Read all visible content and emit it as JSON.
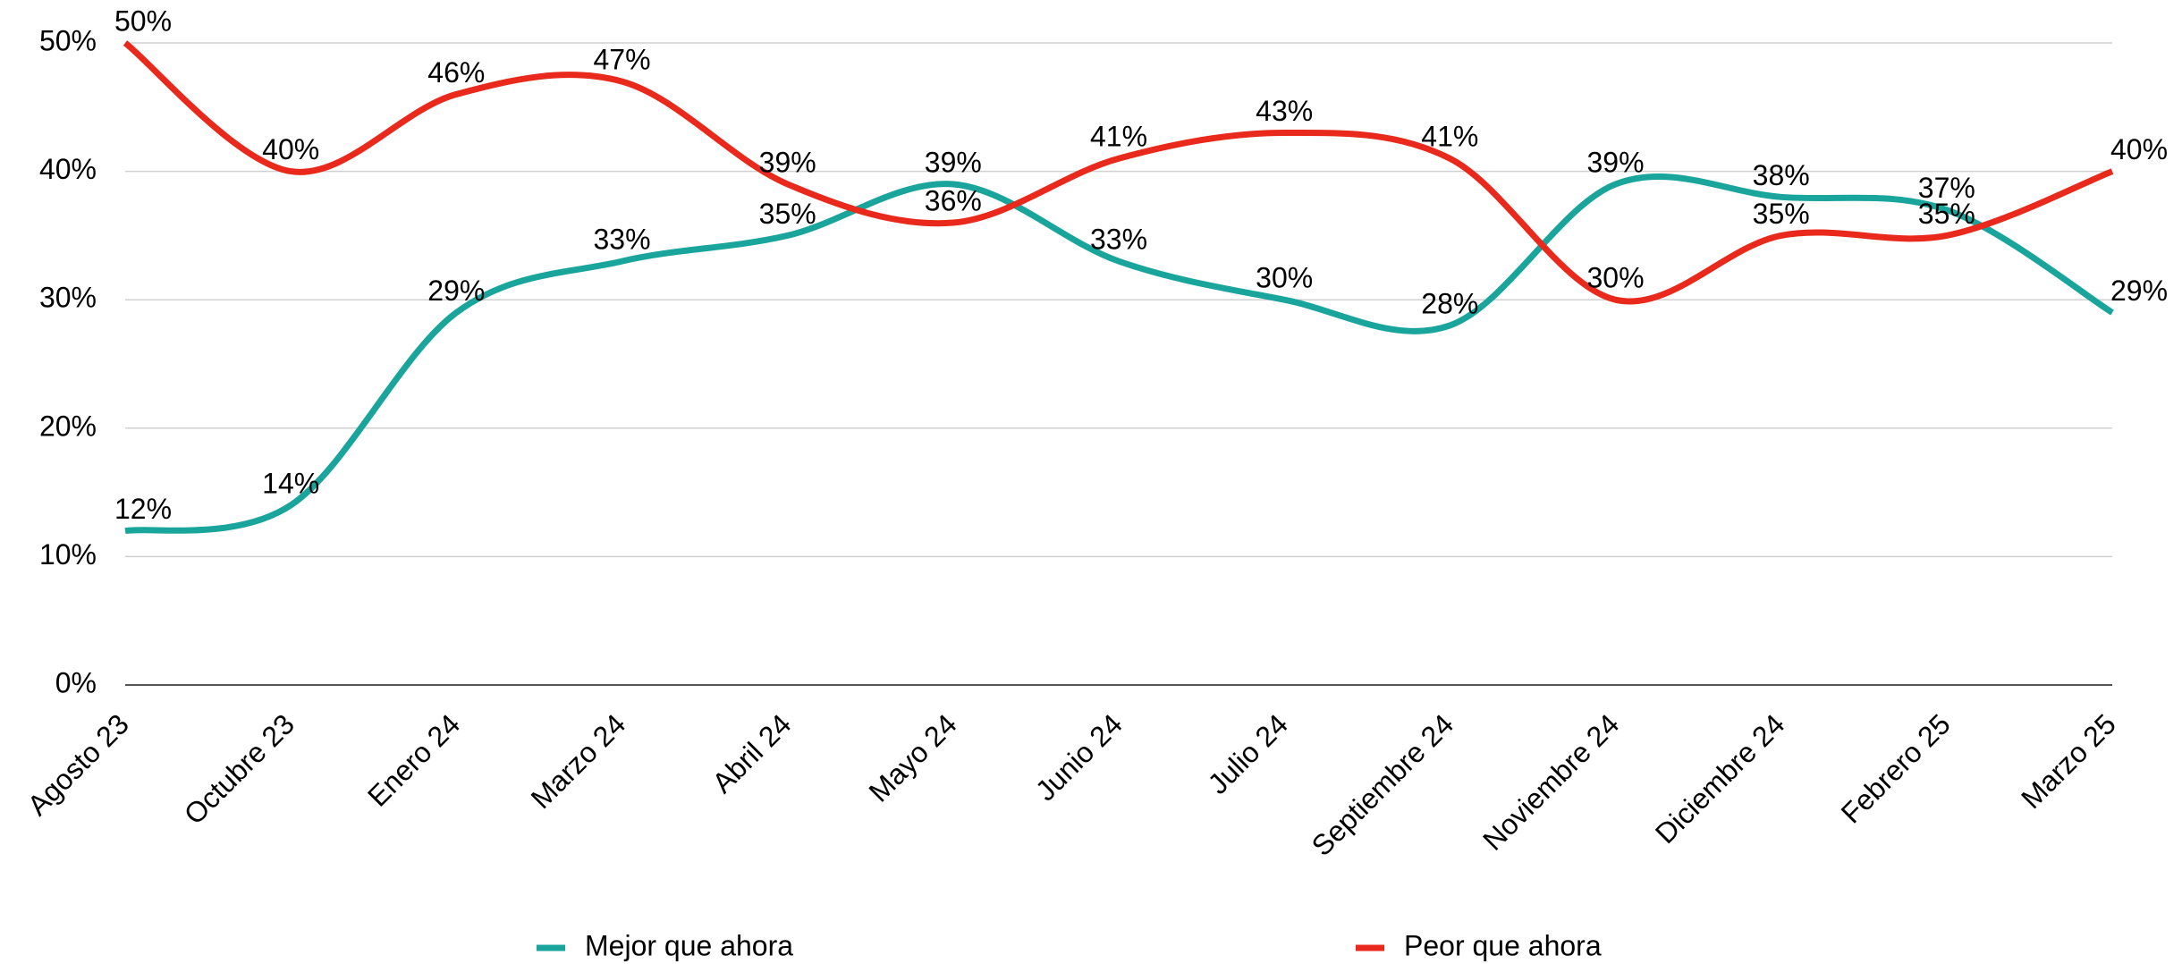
{
  "chart_data": {
    "type": "line",
    "categories": [
      "Agosto 23",
      "Octubre 23",
      "Enero 24",
      "Marzo 24",
      "Abril 24",
      "Mayo 24",
      "Junio 24",
      "Julio 24",
      "Septiembre 24",
      "Noviembre 24",
      "Diciembre 24",
      "Febrero 25",
      "Marzo 25"
    ],
    "series": [
      {
        "name": "Mejor que ahora",
        "color": "#1aa59c",
        "values": [
          12,
          14,
          29,
          33,
          35,
          39,
          33,
          30,
          28,
          39,
          38,
          37,
          29
        ],
        "value_labels": [
          "12%",
          "14%",
          "29%",
          "33%",
          "35%",
          "39%",
          "33%",
          "30%",
          "28%",
          "39%",
          "38%",
          "37%",
          "29%"
        ]
      },
      {
        "name": "Peor que ahora",
        "color": "#e8291c",
        "values": [
          50,
          40,
          46,
          47,
          39,
          36,
          41,
          43,
          41,
          30,
          35,
          35,
          40
        ],
        "value_labels": [
          "50%",
          "40%",
          "46%",
          "47%",
          "39%",
          "36%",
          "41%",
          "43%",
          "41%",
          "30%",
          "35%",
          "35%",
          "40%"
        ]
      }
    ],
    "ylim": [
      0,
      50
    ],
    "yticks": [
      {
        "value": 0,
        "label": "0%"
      },
      {
        "value": 10,
        "label": "10%"
      },
      {
        "value": 20,
        "label": "20%"
      },
      {
        "value": 30,
        "label": "30%"
      },
      {
        "value": 40,
        "label": "40%"
      },
      {
        "value": 50,
        "label": "50%"
      }
    ],
    "grid": true,
    "legend": "bottom"
  }
}
